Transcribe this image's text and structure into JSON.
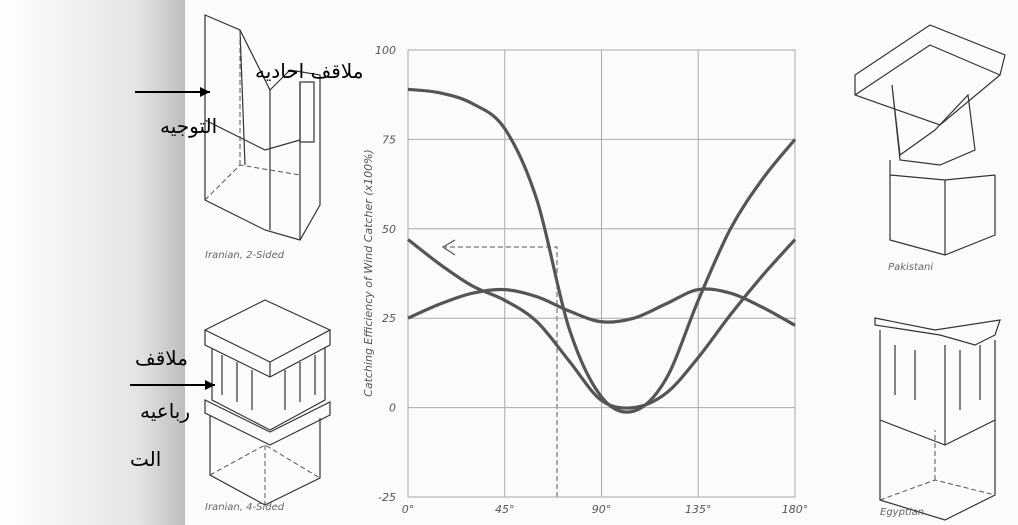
{
  "annotations": {
    "top_left_line1": "ملاقف احاديه",
    "top_left_line2": "التوجيه",
    "bottom_left_line1": "ملاقف",
    "bottom_left_line2": "رباعيه",
    "bottom_left_line3": "الت"
  },
  "captions": {
    "iranian_2": "Iranian, 2-Sided",
    "iranian_4": "Iranian, 4-Sided",
    "pakistani": "Pakistani",
    "egyptian": "Egyptian"
  },
  "chart_data": {
    "type": "line",
    "y_label": "Catching Efficiency of Wind Catcher (x100%)",
    "x": [
      0,
      15,
      30,
      45,
      60,
      75,
      90,
      105,
      120,
      135,
      150,
      165,
      180
    ],
    "series": [
      {
        "color": "#555555",
        "values": [
          89,
          88,
          85,
          78,
          58,
          22,
          3,
          -1,
          8,
          30,
          50,
          64,
          75
        ]
      },
      {
        "color": "#555555",
        "values": [
          47,
          40,
          34,
          30,
          24,
          13,
          2,
          0,
          4,
          14,
          26,
          37,
          47
        ]
      },
      {
        "color": "#555555",
        "values": [
          25,
          29,
          32,
          33,
          31,
          27,
          24,
          25,
          29,
          33,
          32,
          28,
          23
        ]
      }
    ],
    "xlim": [
      0,
      180
    ],
    "xticks": [
      {
        "value": 0,
        "label": "0°"
      },
      {
        "value": 45,
        "label": "45°"
      },
      {
        "value": 90,
        "label": "90°"
      },
      {
        "value": 135,
        "label": "135°"
      },
      {
        "value": 180,
        "label": "180°"
      }
    ],
    "ylim": [
      -25,
      100
    ],
    "yticks": [
      -25,
      0,
      25,
      50,
      75,
      100
    ],
    "grid": true
  }
}
